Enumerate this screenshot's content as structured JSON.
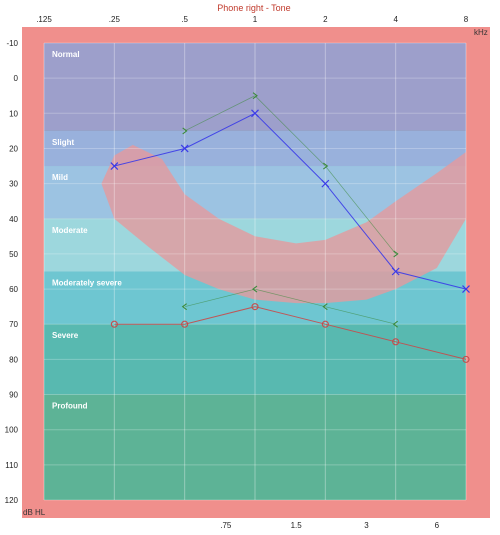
{
  "chart_data": {
    "type": "line",
    "title": "Phone right - Tone",
    "xaxis": {
      "scale": "log",
      "unit_label": "kHz",
      "top_ticks": [
        ".125",
        ".25",
        ".5",
        "1",
        "2",
        "4",
        "8"
      ],
      "top_tick_values": [
        0.125,
        0.25,
        0.5,
        1,
        2,
        4,
        8
      ],
      "bottom_ticks": [
        ".75",
        "1.5",
        "3",
        "6"
      ],
      "bottom_tick_values": [
        0.75,
        1.5,
        3,
        6
      ]
    },
    "yaxis": {
      "unit_label": "dB HL",
      "ylim": [
        -10,
        120
      ],
      "inverted": true,
      "ticks": [
        "-10",
        "0",
        "10",
        "20",
        "30",
        "40",
        "50",
        "60",
        "70",
        "80",
        "90",
        "100",
        "110",
        "120"
      ],
      "tick_values": [
        -10,
        0,
        10,
        20,
        30,
        40,
        50,
        60,
        70,
        80,
        90,
        100,
        110,
        120
      ]
    },
    "bands": [
      {
        "label": "Normal",
        "from": -10,
        "to": 15,
        "color": "#9d9fcb"
      },
      {
        "label": "Slight",
        "from": 15,
        "to": 25,
        "color": "#99b1dc"
      },
      {
        "label": "Mild",
        "from": 25,
        "to": 40,
        "color": "#9cc3e2"
      },
      {
        "label": "Moderate",
        "from": 40,
        "to": 55,
        "color": "#9dd7dd"
      },
      {
        "label": "Moderately severe",
        "from": 55,
        "to": 70,
        "color": "#6ec6d1"
      },
      {
        "label": "Severe",
        "from": 70,
        "to": 90,
        "color": "#58b9b0"
      },
      {
        "label": "Profound",
        "from": 90,
        "to": 120,
        "color": "#5db396"
      }
    ],
    "speech_banana": {
      "color": "#e59a9d",
      "upper": [
        [
          0.22,
          30
        ],
        [
          0.25,
          22
        ],
        [
          0.3,
          19
        ],
        [
          0.4,
          23
        ],
        [
          0.5,
          33
        ],
        [
          0.7,
          40
        ],
        [
          1,
          45
        ],
        [
          1.5,
          47
        ],
        [
          2,
          46
        ],
        [
          3,
          41
        ],
        [
          4,
          35
        ],
        [
          6,
          27
        ],
        [
          8,
          21
        ]
      ],
      "lower": [
        [
          8,
          40
        ],
        [
          6,
          54
        ],
        [
          4,
          60
        ],
        [
          3,
          63
        ],
        [
          2,
          64
        ],
        [
          1.5,
          64
        ],
        [
          1,
          63
        ],
        [
          0.7,
          60
        ],
        [
          0.5,
          56
        ],
        [
          0.35,
          48
        ],
        [
          0.25,
          40
        ],
        [
          0.22,
          30
        ]
      ]
    },
    "series": [
      {
        "marker": "x",
        "color": "#3a3ae8",
        "x": [
          0.25,
          0.5,
          1,
          2,
          4,
          8
        ],
        "y": [
          25,
          20,
          10,
          30,
          55,
          60
        ]
      },
      {
        "marker": "o",
        "color": "#c84a4a",
        "x": [
          0.25,
          0.5,
          1,
          2,
          4,
          8
        ],
        "y": [
          70,
          70,
          65,
          70,
          75,
          80
        ]
      },
      {
        "marker": ">",
        "color": "#3c8a3c",
        "x": [
          0.5,
          1,
          2,
          4
        ],
        "y": [
          15,
          5,
          25,
          50
        ]
      },
      {
        "marker": "<",
        "color": "#3c8a3c",
        "x": [
          0.5,
          1,
          2,
          4
        ],
        "y": [
          65,
          60,
          65,
          70
        ]
      }
    ]
  }
}
